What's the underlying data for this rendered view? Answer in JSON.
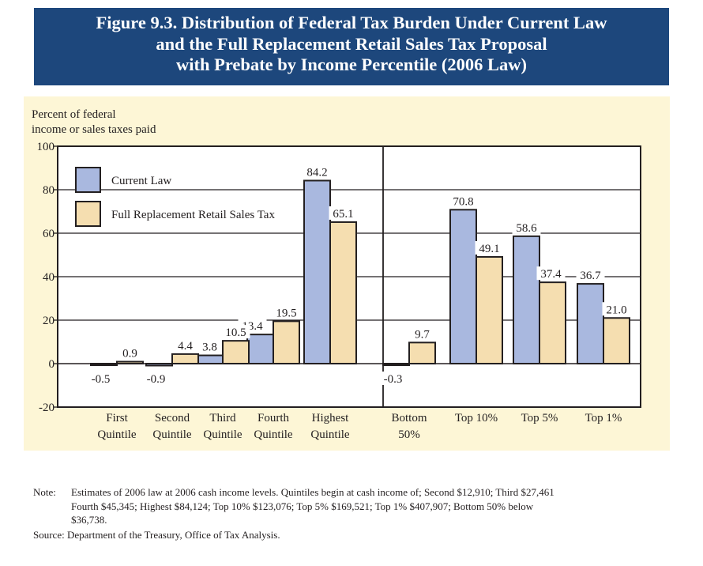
{
  "title_lines": [
    "Figure 9.3. Distribution of Federal Tax Burden Under Current Law",
    "and the Full Replacement Retail Sales Tax Proposal",
    "with Prebate by Income Percentile (2006 Law)"
  ],
  "colors": {
    "banner": "#1d477c",
    "panel_background": "#fdf6d6",
    "current_law": "#a9b8df",
    "sales_tax": "#f5deb0",
    "bar_outline": "#231f20"
  },
  "chart_data": {
    "type": "bar",
    "title": "Figure 9.3. Distribution of Federal Tax Burden Under Current Law and the Full Replacement Retail Sales Tax Proposal with Prebate by Income Percentile (2006 Law)",
    "ylabel_lines": [
      "Percent of federal",
      "income or sales taxes paid"
    ],
    "xlabel": "",
    "ylim": [
      -20,
      100
    ],
    "yticks": [
      -20,
      0,
      20,
      40,
      60,
      80,
      100
    ],
    "ytick_labels": [
      "-20",
      "0",
      "20",
      "40",
      "60",
      "80",
      "100"
    ],
    "grid": true,
    "legend_position": "top-left",
    "categories": [
      [
        "First",
        "Quintile"
      ],
      [
        "Second",
        "Quintile"
      ],
      [
        "Third",
        "Quintile"
      ],
      [
        "Fourth",
        "Quintile"
      ],
      [
        "Highest",
        "Quintile"
      ],
      [
        "Bottom",
        "50%"
      ],
      [
        "Top 10%"
      ],
      [
        "Top 5%"
      ],
      [
        "Top 1%"
      ]
    ],
    "groups_divider_after_index": 4,
    "series": [
      {
        "name": "Current Law",
        "values": [
          -0.5,
          -0.9,
          3.8,
          13.4,
          84.2,
          -0.3,
          70.8,
          58.6,
          36.7
        ],
        "labels": [
          "-0.5",
          "-0.9",
          "3.8",
          "13.4",
          "84.2",
          "-0.3",
          "70.8",
          "58.6",
          "36.7"
        ]
      },
      {
        "name": "Full Replacement Retail Sales Tax",
        "values": [
          0.9,
          4.4,
          10.5,
          19.5,
          65.1,
          9.7,
          49.1,
          37.4,
          21.0
        ],
        "labels": [
          "0.9",
          "4.4",
          "10.5",
          "19.5",
          "65.1",
          "9.7",
          "49.1",
          "37.4",
          "21.0"
        ]
      }
    ]
  },
  "note": {
    "label": "Note:",
    "lines": [
      "Estimates of 2006 law at 2006 cash income levels.  Quintiles begin at cash income of; Second $12,910; Third $27,461",
      "Fourth $45,345; Highest $84,124; Top 10% $123,076; Top 5% $169,521; Top 1% $407,907; Bottom 50% below",
      "$36,738."
    ]
  },
  "source": "Source: Department of the Treasury, Office of Tax Analysis."
}
